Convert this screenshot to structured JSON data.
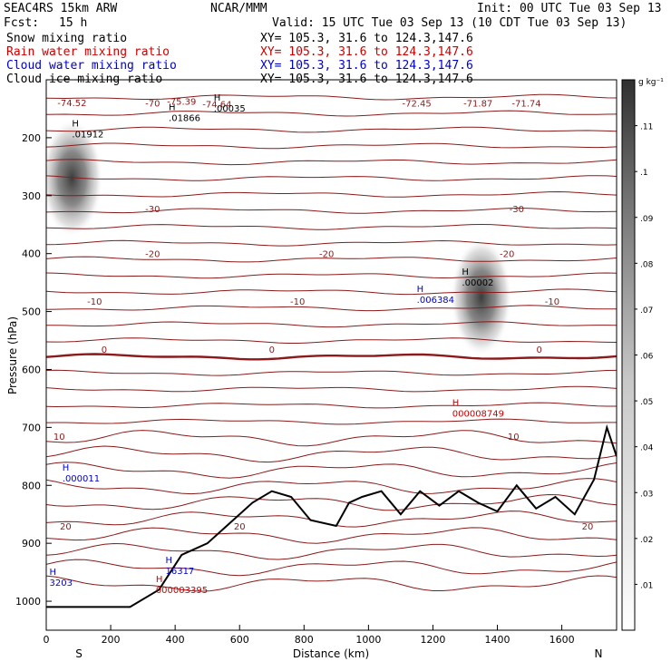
{
  "header": {
    "model_line": "SEAC4RS 15km ARW",
    "org": "NCAR/MMM",
    "init": "Init: 00 UTC Tue 03 Sep 13",
    "fcst_label": "Fcst:",
    "fcst_value": "15 h",
    "valid": "Valid: 15 UTC Tue 03 Sep 13 (10 CDT Tue 03 Sep 13)"
  },
  "fields": [
    {
      "label": "Snow mixing ratio",
      "xy": "XY= 105.3, 31.6 to 124.3,147.6",
      "color": "#000000"
    },
    {
      "label": "Rain water mixing ratio",
      "xy": "XY= 105.3, 31.6 to 124.3,147.6",
      "color": "#cc0000"
    },
    {
      "label": "Cloud water mixing ratio",
      "xy": "XY= 105.3, 31.6 to 124.3,147.6",
      "color": "#0000cc"
    },
    {
      "label": "Cloud ice mixing ratio",
      "xy": "XY= 105.3, 31.6 to 124.3,147.6",
      "color": "#000000"
    }
  ],
  "chart_data": {
    "type": "heatmap",
    "xlabel": "Distance (km)",
    "ylabel": "Pressure (hPa)",
    "xlim": [
      0,
      1770
    ],
    "ylim": [
      1050,
      100
    ],
    "x_ticks": [
      0,
      200,
      400,
      600,
      800,
      1000,
      1200,
      1400,
      1600
    ],
    "y_ticks": [
      200,
      300,
      400,
      500,
      600,
      700,
      800,
      900,
      1000
    ],
    "endpoints": {
      "left": "S",
      "right": "N"
    },
    "colorbar": {
      "unit": "g kg⁻¹",
      "ticks": [
        ".01",
        ".02",
        ".03",
        ".04",
        ".05",
        ".06",
        ".07",
        ".08",
        ".09",
        ".1",
        ".11"
      ],
      "range": [
        0,
        0.12
      ]
    },
    "snow_blobs": [
      {
        "x": 80,
        "p": 270,
        "peak": 0.09
      },
      {
        "x": 1350,
        "p": 475,
        "peak": 0.08
      }
    ],
    "temperature_isotherms": [
      {
        "value": -70,
        "label": "-70",
        "x_label": 330,
        "p": 140
      },
      {
        "value": -30,
        "label": "-30",
        "labels_x": [
          330,
          1460
        ],
        "p": 322
      },
      {
        "value": -20,
        "label": "-20",
        "labels_x": [
          330,
          870,
          1430
        ],
        "p": 400
      },
      {
        "value": -10,
        "label": "-10",
        "labels_x": [
          150,
          780,
          1570
        ],
        "p": 482
      },
      {
        "value": 0,
        "label": "0",
        "labels_x": [
          180,
          700,
          1530
        ],
        "p": 565
      },
      {
        "value": 10,
        "label": "10",
        "labels_x": [
          40,
          1450
        ],
        "p": 715
      },
      {
        "value": 20,
        "label": "20",
        "labels_x": [
          60,
          600,
          1680
        ],
        "p": 870
      }
    ],
    "minimum_labels": [
      {
        "text": "-74.52",
        "x": 80,
        "p": 145
      },
      {
        "text": "-75.39",
        "x": 420,
        "p": 143
      },
      {
        "text": "-74.64",
        "x": 530,
        "p": 148
      },
      {
        "text": "-72.45",
        "x": 1150,
        "p": 146
      },
      {
        "text": "-71.87",
        "x": 1340,
        "p": 146
      },
      {
        "text": "-71.74",
        "x": 1490,
        "p": 146
      }
    ],
    "maxima": [
      {
        "value": ".01912",
        "x": 80,
        "p": 196,
        "color": "#000000"
      },
      {
        "value": ".01866",
        "x": 380,
        "p": 168,
        "color": "#000000"
      },
      {
        "value": ".00035",
        "x": 520,
        "p": 152,
        "color": "#000000"
      },
      {
        "value": ".00002",
        "x": 1290,
        "p": 452,
        "color": "#000000"
      },
      {
        "value": ".006384",
        "x": 1150,
        "p": 482,
        "color": "#0000cc"
      },
      {
        "value": "000008749",
        "x": 1260,
        "p": 678,
        "color": "#cc0000"
      },
      {
        "value": ".000011",
        "x": 50,
        "p": 790,
        "color": "#0000cc"
      },
      {
        "value": "16317",
        "x": 370,
        "p": 950,
        "color": "#0000cc"
      },
      {
        "value": "3203",
        "x": 10,
        "p": 970,
        "color": "#0000cc"
      },
      {
        "value": "000003395",
        "x": 340,
        "p": 983,
        "color": "#cc0000"
      }
    ]
  }
}
